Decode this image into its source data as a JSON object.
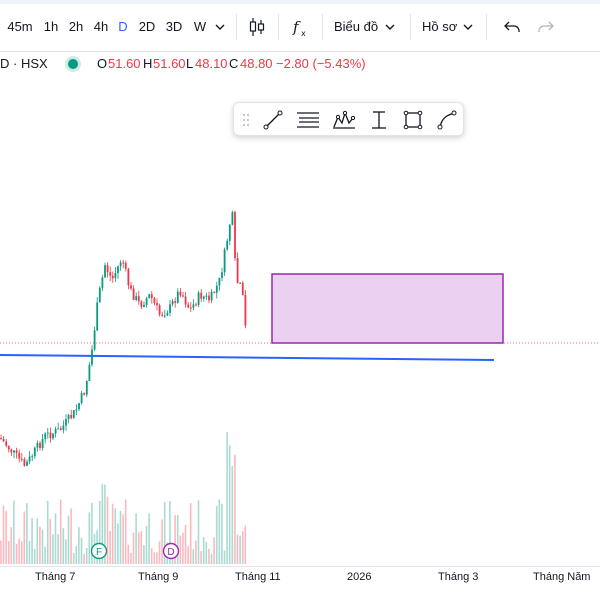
{
  "toolbar": {
    "intervals": [
      "45m",
      "1h",
      "2h",
      "4h",
      "D",
      "2D",
      "3D",
      "W"
    ],
    "active_interval": "D",
    "chart_menu_label": "Biểu đồ",
    "profile_menu_label": "Hồ sơ",
    "icons": [
      "chevron-down-icon",
      "candles-icon",
      "indicator-fx-icon",
      "undo-icon",
      "redo-icon"
    ]
  },
  "legend": {
    "symbol": "D · HSX",
    "open_label": "O",
    "open": "51.60",
    "high_label": "H",
    "high": "51.60",
    "low_label": "L",
    "low": "48.10",
    "close_label": "C",
    "close": "48.80",
    "change": "−2.80 (−5.43%)"
  },
  "drawing_toolbar": {
    "icons": [
      "drag-handle-icon",
      "trend-line-icon",
      "horizontal-lines-icon",
      "pattern-icon",
      "measure-icon",
      "rectangle-icon",
      "curve-icon"
    ]
  },
  "events": [
    {
      "letter": "F",
      "color": "#089981"
    },
    {
      "letter": "D",
      "color": "#9c27b0"
    }
  ],
  "colors": {
    "up": "#089981",
    "down": "#f23645",
    "trendline": "#2962ff",
    "rectangle_fill": "#e8c8ef",
    "rectangle_border": "#9c27b0"
  },
  "xaxis": {
    "labels": [
      "Tháng 7",
      "Tháng 9",
      "Tháng 11",
      "2026",
      "Tháng 3",
      "Tháng Năm"
    ]
  }
}
